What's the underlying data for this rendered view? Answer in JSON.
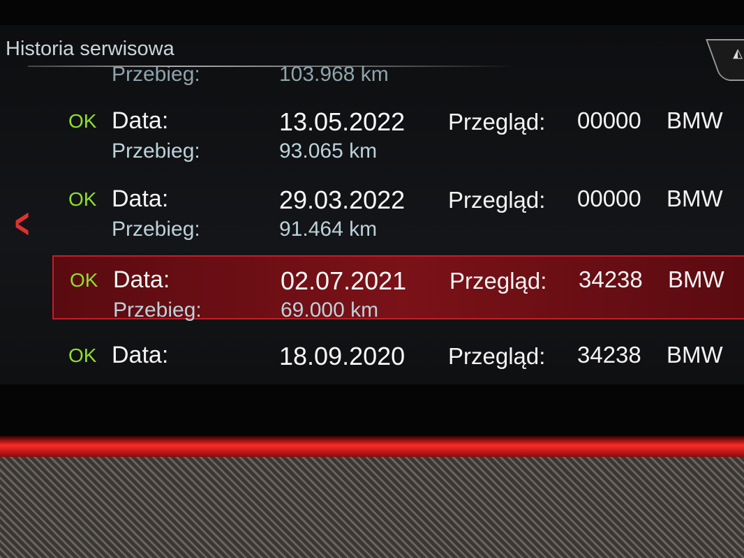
{
  "header": {
    "title": "Historia serwisowa"
  },
  "partial_row": {
    "mileage_label": "Przebieg:",
    "mileage": "103.968 km"
  },
  "labels": {
    "date": "Data:",
    "mileage": "Przebieg:",
    "service": "Przegląd:"
  },
  "records": [
    {
      "status": "OK",
      "date": "13.05.2022",
      "service_code": "00000",
      "brand": "BMW",
      "mileage": "93.065 km",
      "selected": false
    },
    {
      "status": "OK",
      "date": "29.03.2022",
      "service_code": "00000",
      "brand": "BMW",
      "mileage": "91.464 km",
      "selected": false
    },
    {
      "status": "OK",
      "date": "02.07.2021",
      "service_code": "34238",
      "brand": "BMW",
      "mileage": "69.000 km",
      "selected": true
    },
    {
      "status": "OK",
      "date": "18.09.2020",
      "service_code": "34238",
      "brand": "BMW",
      "selected": false
    }
  ],
  "colors": {
    "ok": "#8fe02a",
    "selection": "#7a1218",
    "accent": "#e03030"
  },
  "icons": {
    "back": "chevron-left-icon",
    "corner": "navigation-icon"
  }
}
